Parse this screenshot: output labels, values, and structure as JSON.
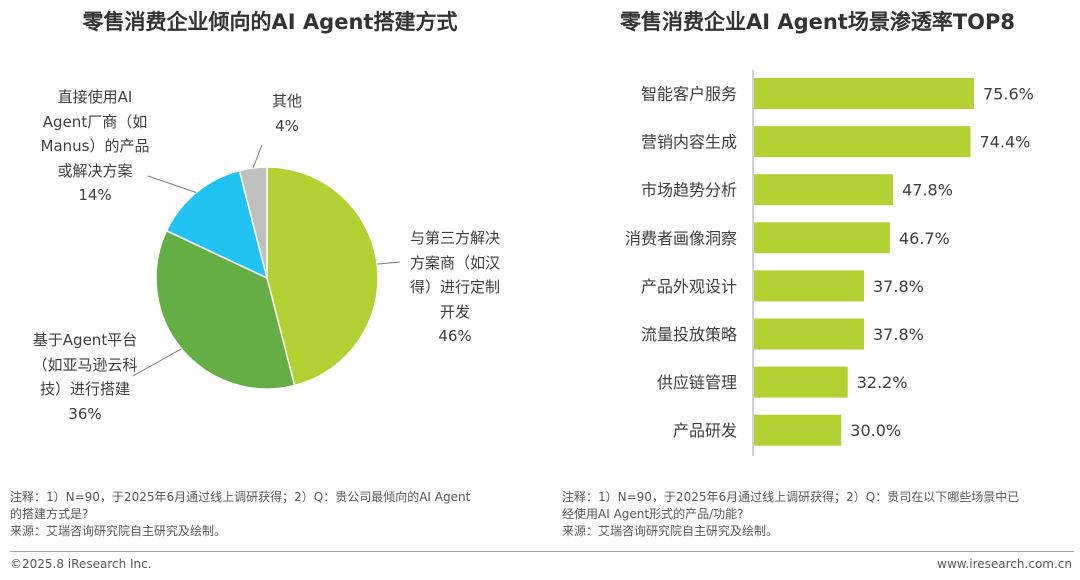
{
  "pie": {
    "title": "零售消费企业倾向的AI Agent搭建方式",
    "note_lines": [
      "注释：1）N=90，于2025年6月通过线上调研获得；2）Q：贵公司最倾向的AI Agent",
      "的搭建方式是?",
      "来源：艾瑞咨询研究院自主研究及绘制。"
    ]
  },
  "bar": {
    "title": "零售消费企业AI Agent场景渗透率TOP8",
    "note_lines": [
      "注释：1）N=90，于2025年6月通过线上调研获得；2）Q：贵司在以下哪些场景中已",
      "经使用AI Agent形式的产品/功能?",
      "来源：艾瑞咨询研究院自主研究及绘制。"
    ]
  },
  "footer": {
    "left": "©2025.8 iResearch Inc.",
    "right": "www.iresearch.com.cn"
  },
  "colors": {
    "green_light": "#b2d234",
    "green_dark": "#64ae45",
    "cyan": "#21c3f3",
    "gray": "#bfbfbf"
  },
  "chart_data": [
    {
      "type": "pie",
      "title": "零售消费企业倾向的AI Agent搭建方式",
      "slices": [
        {
          "label_lines": [
            "与第三方解决",
            "方案商（如汉",
            "得）进行定制",
            "开发"
          ],
          "value": 46,
          "pct_label": "46%",
          "color": "#b2d234"
        },
        {
          "label_lines": [
            "基于Agent平台",
            "（如亚马逊云科",
            "技）进行搭建"
          ],
          "value": 36,
          "pct_label": "36%",
          "color": "#64ae45"
        },
        {
          "label_lines": [
            "直接使用AI",
            "Agent厂商（如",
            "Manus）的产品",
            "或解决方案"
          ],
          "value": 14,
          "pct_label": "14%",
          "color": "#21c3f3"
        },
        {
          "label_lines": [
            "其他"
          ],
          "value": 4,
          "pct_label": "4%",
          "color": "#bfbfbf"
        }
      ]
    },
    {
      "type": "bar",
      "orientation": "horizontal",
      "title": "零售消费企业AI Agent场景渗透率TOP8",
      "categories": [
        "智能客户服务",
        "营销内容生成",
        "市场趋势分析",
        "消费者画像洞察",
        "产品外观设计",
        "流量投放策略",
        "供应链管理",
        "产品研发"
      ],
      "values": [
        75.6,
        74.4,
        47.8,
        46.7,
        37.8,
        37.8,
        32.2,
        30.0
      ],
      "value_labels": [
        "75.6%",
        "74.4%",
        "47.8%",
        "46.7%",
        "37.8%",
        "37.8%",
        "32.2%",
        "30.0%"
      ],
      "unit": "%",
      "color": "#b2d234",
      "xlim": [
        0,
        100
      ]
    }
  ]
}
